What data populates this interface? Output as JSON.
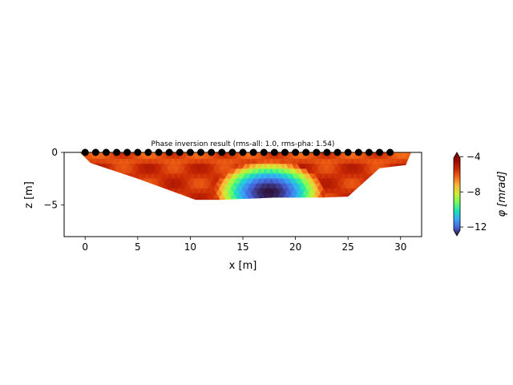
{
  "chart_data": {
    "type": "heatmap",
    "title": "Phase inversion result (rms-all: 1.0, rms-pha: 1.54)",
    "xlabel": "x [m]",
    "ylabel": "z [m]",
    "xlim": [
      -2,
      32
    ],
    "ylim": [
      -8,
      0
    ],
    "x_ticks": [
      0,
      5,
      10,
      15,
      20,
      25,
      30
    ],
    "y_ticks": [
      0,
      -5
    ],
    "electrodes": {
      "x": [
        0,
        1,
        2,
        3,
        4,
        5,
        6,
        7,
        8,
        9,
        10,
        11,
        12,
        13,
        14,
        15,
        16,
        17,
        18,
        19,
        20,
        21,
        22,
        23,
        24,
        25,
        26,
        27,
        28,
        29
      ],
      "z": 0
    },
    "mesh_outline": [
      [
        -0.5,
        0
      ],
      [
        31,
        0
      ],
      [
        30.5,
        -1.2
      ],
      [
        28,
        -1.5
      ],
      [
        25,
        -4.2
      ],
      [
        22.5,
        -4.3
      ],
      [
        18,
        -4.3
      ],
      [
        13,
        -4.5
      ],
      [
        10.5,
        -4.5
      ],
      [
        5,
        -2.5
      ],
      [
        0.5,
        -1.0
      ],
      [
        -0.2,
        -0.3
      ]
    ],
    "anomaly": {
      "center_x": 17.5,
      "center_z": -3.8,
      "radius_x": 5.2,
      "radius_z": 3.0,
      "min": -13,
      "background": -5.5
    },
    "colorbar": {
      "label": "φ [mrad]",
      "min": -13,
      "max": -3.5,
      "ticks": [
        -4,
        -8,
        -12
      ],
      "colormap": "turbo"
    }
  }
}
